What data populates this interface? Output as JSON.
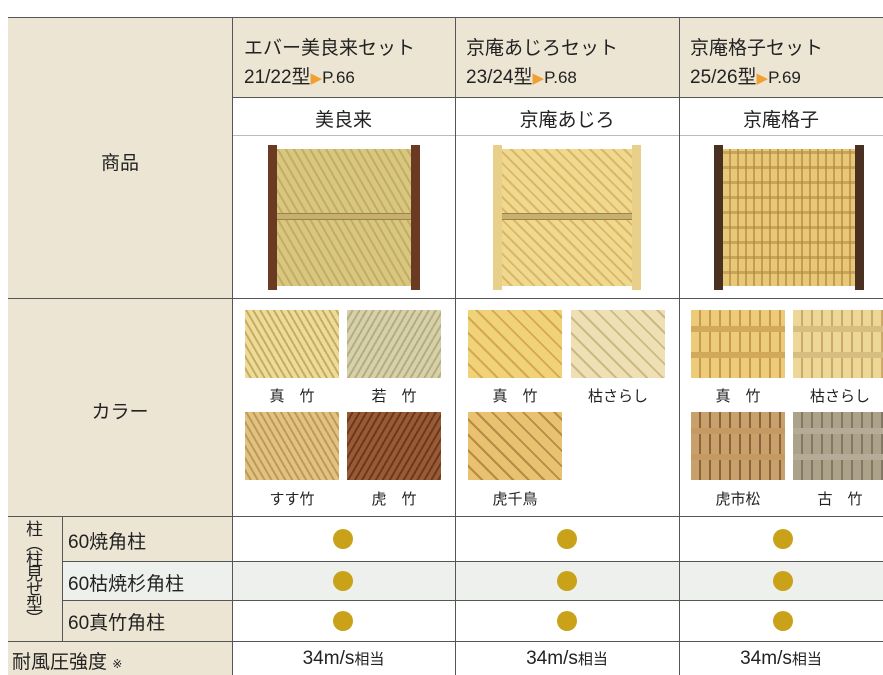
{
  "table": {
    "row_labels": {
      "product": "商品",
      "color": "カラー",
      "post_group": "柱（柱見せ型）",
      "posts": [
        "60焼角柱",
        "60枯焼杉角柱",
        "60真竹角柱"
      ],
      "wind": "耐風圧強度",
      "wind_note": "※"
    },
    "columns": [
      {
        "set_name": "エバー美良来セット",
        "model": "21/22型",
        "page": "P.66",
        "product": "美良来",
        "colors": [
          "真　竹",
          "若　竹",
          "すす竹",
          "虎　竹"
        ],
        "wind_value": "34m/s",
        "wind_suffix": "相当"
      },
      {
        "set_name": "京庵あじろセット",
        "model": "23/24型",
        "page": "P.68",
        "product": "京庵あじろ",
        "colors": [
          "真　竹",
          "枯さらし",
          "虎千鳥"
        ],
        "wind_value": "34m/s",
        "wind_suffix": "相当"
      },
      {
        "set_name": "京庵格子セット",
        "model": "25/26型",
        "page": "P.69",
        "product": "京庵格子",
        "colors": [
          "真　竹",
          "枯さらし",
          "虎市松",
          "古　竹"
        ],
        "wind_value": "34m/s",
        "wind_suffix": "相当"
      }
    ]
  }
}
